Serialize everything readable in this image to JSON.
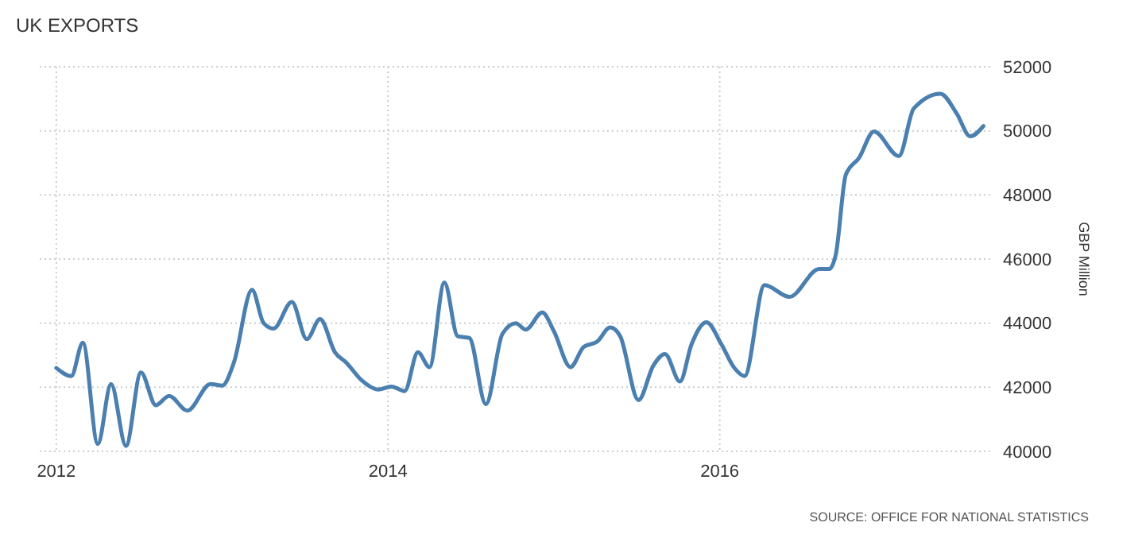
{
  "chart_data": {
    "type": "line",
    "title": "UK EXPORTS",
    "ylabel": "GBP Million",
    "annotations": [
      "SOURCE: OFFICE FOR NATIONAL STATISTICS"
    ],
    "x": [
      2012.0,
      2012.09,
      2012.16,
      2012.25,
      2012.33,
      2012.42,
      2012.51,
      2012.6,
      2012.68,
      2012.79,
      2012.93,
      2013.0,
      2013.07,
      2013.18,
      2013.25,
      2013.31,
      2013.42,
      2013.51,
      2013.59,
      2013.68,
      2013.75,
      2013.84,
      2013.94,
      2014.02,
      2014.1,
      2014.18,
      2014.25,
      2014.34,
      2014.42,
      2014.49,
      2014.59,
      2014.69,
      2014.77,
      2014.83,
      2014.93,
      2015.0,
      2015.1,
      2015.18,
      2015.26,
      2015.34,
      2015.4,
      2015.51,
      2015.6,
      2015.67,
      2015.76,
      2015.83,
      2015.92,
      2016.01,
      2016.09,
      2016.15,
      2016.27,
      2016.42,
      2016.6,
      2016.66,
      2016.7,
      2016.76,
      2016.84,
      2016.93,
      2017.08,
      2017.17,
      2017.33,
      2017.43,
      2017.51,
      2017.59
    ],
    "series": [
      {
        "color": "#4a7fb0",
        "values": [
          42600,
          42350,
          43390,
          40230,
          42100,
          40170,
          42460,
          41440,
          41730,
          41270,
          42100,
          42050,
          42760,
          45040,
          44000,
          43830,
          44660,
          43500,
          44130,
          43090,
          42760,
          42220,
          41930,
          42020,
          41880,
          43090,
          42630,
          45270,
          43590,
          43540,
          41470,
          43670,
          44000,
          43800,
          44330,
          43750,
          42630,
          43260,
          43420,
          43870,
          43590,
          41600,
          42680,
          43040,
          42180,
          43340,
          44030,
          43340,
          42590,
          42350,
          45190,
          44820,
          45690,
          45690,
          46150,
          48630,
          49160,
          49980,
          49210,
          50700,
          51160,
          50530,
          49830,
          50150
        ]
      }
    ],
    "xlim": [
      2011.9,
      2017.65
    ],
    "xticks": [
      2012,
      2014,
      2016
    ],
    "ylim": [
      40000,
      52000
    ],
    "yticks": [
      40000,
      42000,
      44000,
      46000,
      48000,
      50000,
      52000
    ],
    "grid": true,
    "marker": "none",
    "line_style": "solid"
  }
}
